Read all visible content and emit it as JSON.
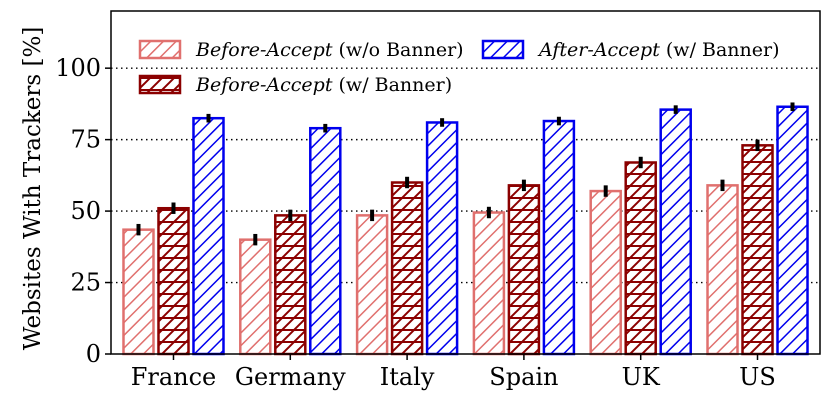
{
  "chart_data": {
    "type": "bar",
    "title": "",
    "xlabel": "",
    "ylabel": "Websites With Trackers [%]",
    "ylim": [
      0,
      120
    ],
    "yticks": [
      0,
      25,
      50,
      75,
      100
    ],
    "grid": "horizontal dotted at y ticks",
    "legend_position": "top",
    "categories": [
      "France",
      "Germany",
      "Italy",
      "Spain",
      "UK",
      "US"
    ],
    "series": [
      {
        "name": "Before-Accept (w/o Banner)",
        "legend_italic": "Before-Accept",
        "legend_plain": " (w/o Banner)",
        "color": "#e0706e",
        "values": [
          43.5,
          40,
          48.5,
          49.5,
          57,
          59
        ],
        "errors": [
          2,
          2,
          2,
          2,
          2,
          2
        ]
      },
      {
        "name": "Before-Accept (w/ Banner)",
        "legend_italic": "Before-Accept",
        "legend_plain": " (w/ Banner)",
        "color": "#8b0000",
        "values": [
          51,
          48.5,
          60,
          59,
          67,
          73
        ],
        "errors": [
          2,
          2,
          2,
          2,
          2,
          2
        ]
      },
      {
        "name": "After-Accept (w/ Banner)",
        "legend_italic": "After-Accept",
        "legend_plain": " (w/ Banner)",
        "color": "#0000ee",
        "values": [
          82.5,
          79,
          81,
          81.5,
          85.5,
          86.5
        ],
        "errors": [
          1.5,
          1.5,
          1.5,
          1.5,
          1.5,
          1.5
        ]
      }
    ]
  }
}
